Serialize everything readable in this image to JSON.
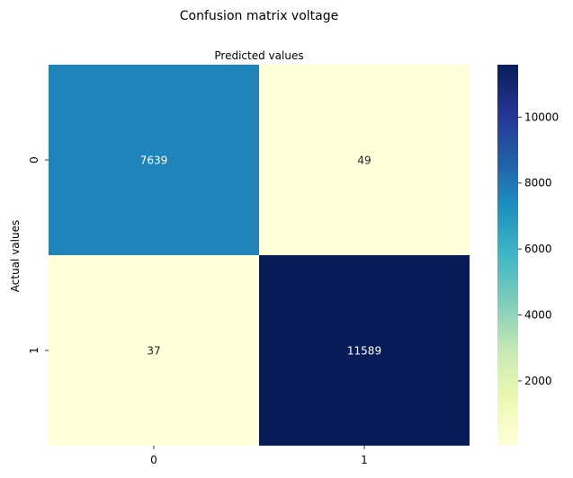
{
  "chart_data": {
    "type": "heatmap",
    "title": "Confusion matrix voltage",
    "xlabel": "Predicted values",
    "ylabel": "Actual values",
    "x_categories": [
      "0",
      "1"
    ],
    "y_categories": [
      "0",
      "1"
    ],
    "values": [
      [
        7639,
        49
      ],
      [
        37,
        11589
      ]
    ],
    "colorbar": {
      "min": 37,
      "max": 11589,
      "ticks": [
        2000,
        4000,
        6000,
        8000,
        10000
      ],
      "colormap": "YlGnBu"
    },
    "xlabel_position": "top",
    "grid": false
  }
}
